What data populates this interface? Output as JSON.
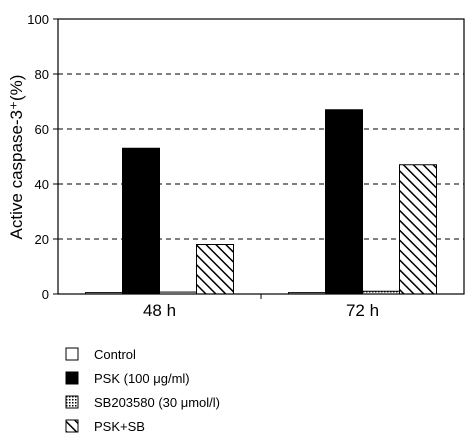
{
  "chart_data": {
    "type": "bar",
    "ylabel": "Active caspase-3⁺(%)",
    "ylim": [
      0,
      100
    ],
    "yticks": [
      0,
      20,
      40,
      60,
      80,
      100
    ],
    "grid": "horizontal dashed at 20, 40, 60, 80",
    "categories": [
      "48 h",
      "72 h"
    ],
    "series": [
      {
        "name": "Control",
        "values": [
          0.5,
          0.5
        ],
        "fill": "white"
      },
      {
        "name": "PSK (100 μg/ml)",
        "values": [
          53,
          67
        ],
        "fill": "black"
      },
      {
        "name": "SB203580 (30 μmol/l)",
        "values": [
          0.7,
          1
        ],
        "fill": "dotted"
      },
      {
        "name": "PSK+SB",
        "values": [
          18,
          47
        ],
        "fill": "hatched"
      }
    ],
    "legend_position": "bottom-left"
  }
}
